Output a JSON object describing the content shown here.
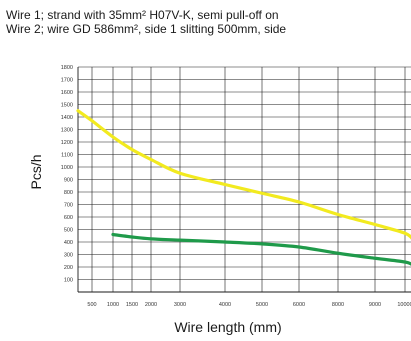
{
  "chart_data": {
    "type": "line",
    "title": "",
    "subtitle_lines": [
      "Wire 1; strand with 35mm² H07V-K, semi pull-off on",
      "Wire 2; wire GD 586mm², side 1 slitting 500mm, side"
    ],
    "xlabel": "Wire length (mm)",
    "ylabel": "Pcs/h",
    "ylim": [
      0,
      1800
    ],
    "y_ticks": [
      100,
      200,
      300,
      400,
      500,
      600,
      700,
      800,
      900,
      1000,
      1100,
      1200,
      1300,
      1400,
      1500,
      1600,
      1700,
      1800
    ],
    "x_ticks": [
      "500",
      "1000",
      "1500",
      "2000",
      "3000",
      "4000",
      "5000",
      "6000",
      "8000",
      "9000",
      "10000"
    ],
    "grid": true,
    "legend": "none",
    "series": [
      {
        "color": "#f2ea1f",
        "x": [
          "0",
          "500",
          "1000",
          "1500",
          "2000",
          "3000",
          "4000",
          "5000",
          "6000",
          "8000",
          "9000",
          "10000",
          "10500"
        ],
        "values": [
          1450,
          1370,
          1240,
          1140,
          1060,
          950,
          860,
          790,
          720,
          620,
          540,
          470,
          420
        ]
      },
      {
        "color": "#1f9a4a",
        "x": [
          "1000",
          "1500",
          "2000",
          "3000",
          "4000",
          "5000",
          "6000",
          "8000",
          "9000",
          "10000",
          "10500"
        ],
        "values": [
          460,
          440,
          425,
          415,
          400,
          385,
          360,
          310,
          270,
          240,
          215
        ]
      }
    ]
  },
  "colors": {
    "grid": "#1a1a1a",
    "text": "#1a1a1a"
  }
}
